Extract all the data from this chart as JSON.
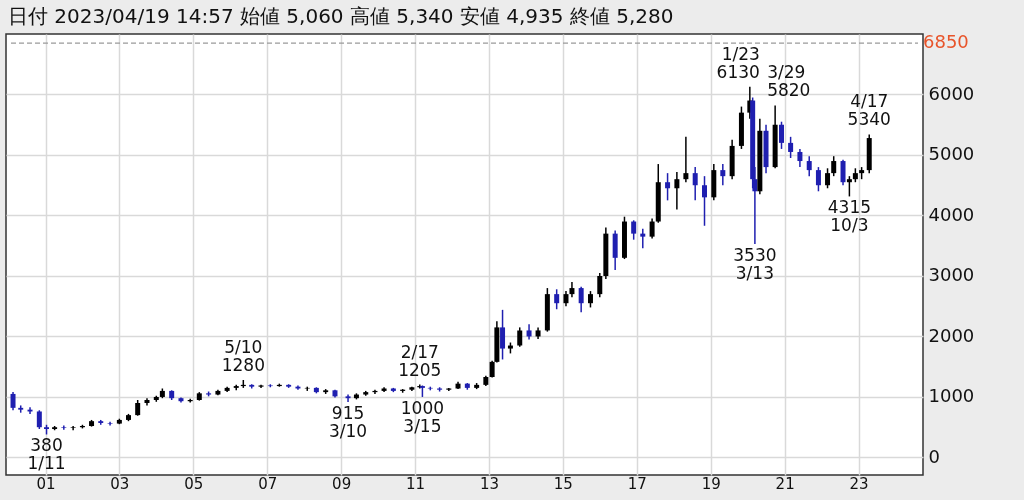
{
  "chart_data": {
    "type": "candlestick",
    "title": "日付 2023/04/19 14:57 始値 5,060 高値 5,340 安値 4,935 終値 5,280",
    "x": [
      "2000-02-15",
      "2000-05",
      "2000-08",
      "2000-11",
      "2001-01-11",
      "2001-04",
      "2001-07",
      "2001-10",
      "2002-01",
      "2002-04",
      "2002-07",
      "2002-10",
      "2003-01",
      "2003-04",
      "2003-07",
      "2003-10",
      "2004-01",
      "2004-03",
      "2004-06",
      "2004-09",
      "2004-12",
      "2005-03",
      "2005-06",
      "2005-09",
      "2005-12",
      "2006-03",
      "2006-05-10",
      "2006-08",
      "2006-11",
      "2007-02",
      "2007-05",
      "2007-08",
      "2007-11",
      "2008-02",
      "2008-05",
      "2008-08",
      "2008-11",
      "2009-03-10",
      "2009-06",
      "2009-09",
      "2009-12",
      "2010-03",
      "2010-06",
      "2010-09",
      "2010-12",
      "2011-02-17",
      "2011-03-15",
      "2011-06",
      "2011-09",
      "2011-12",
      "2012-03",
      "2012-06",
      "2012-09",
      "2012-12",
      "2013-02",
      "2013-03-20",
      "2013-05-15",
      "2013-08",
      "2013-11",
      "2014-02",
      "2014-05",
      "2014-08",
      "2014-11",
      "2015-02",
      "2015-04",
      "2015-07",
      "2015-10",
      "2016-01",
      "2016-03",
      "2016-06",
      "2016-09",
      "2016-12",
      "2017-03",
      "2017-06",
      "2017-08",
      "2017-11",
      "2018-02",
      "2018-05",
      "2018-08",
      "2018-11",
      "2019-02",
      "2019-05",
      "2019-08",
      "2019-11",
      "2020-01-23",
      "2020-02-20",
      "2020-03-13",
      "2020-05",
      "2020-07",
      "2020-09-29",
      "2020-12",
      "2021-03",
      "2021-06",
      "2021-09",
      "2021-12",
      "2022-03",
      "2022-05",
      "2022-08",
      "2022-10-03",
      "2022-12",
      "2023-02",
      "2023-04-17"
    ],
    "ohlc": [
      [
        1050,
        1080,
        780,
        820
      ],
      [
        820,
        860,
        740,
        790
      ],
      [
        790,
        830,
        720,
        760
      ],
      [
        760,
        780,
        470,
        500
      ],
      [
        500,
        540,
        380,
        470
      ],
      [
        470,
        520,
        450,
        500
      ],
      [
        500,
        530,
        460,
        490
      ],
      [
        490,
        520,
        450,
        500
      ],
      [
        500,
        540,
        480,
        520
      ],
      [
        520,
        620,
        510,
        600
      ],
      [
        600,
        620,
        540,
        570
      ],
      [
        570,
        590,
        530,
        560
      ],
      [
        560,
        640,
        550,
        620
      ],
      [
        620,
        720,
        600,
        700
      ],
      [
        700,
        950,
        690,
        900
      ],
      [
        900,
        980,
        860,
        950
      ],
      [
        950,
        1020,
        920,
        1000
      ],
      [
        1000,
        1140,
        980,
        1100
      ],
      [
        1100,
        1110,
        950,
        980
      ],
      [
        980,
        990,
        910,
        930
      ],
      [
        930,
        970,
        910,
        950
      ],
      [
        950,
        1080,
        940,
        1060
      ],
      [
        1060,
        1090,
        1010,
        1040
      ],
      [
        1040,
        1120,
        1030,
        1100
      ],
      [
        1100,
        1170,
        1080,
        1150
      ],
      [
        1150,
        1200,
        1110,
        1180
      ],
      [
        1180,
        1280,
        1150,
        1200
      ],
      [
        1200,
        1210,
        1140,
        1170
      ],
      [
        1170,
        1200,
        1150,
        1190
      ],
      [
        1190,
        1210,
        1160,
        1180
      ],
      [
        1180,
        1220,
        1170,
        1200
      ],
      [
        1200,
        1210,
        1150,
        1170
      ],
      [
        1170,
        1190,
        1120,
        1140
      ],
      [
        1140,
        1170,
        1100,
        1150
      ],
      [
        1150,
        1160,
        1060,
        1080
      ],
      [
        1080,
        1130,
        1050,
        1110
      ],
      [
        1110,
        1120,
        990,
        1010
      ],
      [
        1010,
        1040,
        915,
        980
      ],
      [
        980,
        1060,
        960,
        1040
      ],
      [
        1040,
        1100,
        1020,
        1080
      ],
      [
        1080,
        1120,
        1050,
        1100
      ],
      [
        1100,
        1160,
        1080,
        1140
      ],
      [
        1140,
        1150,
        1080,
        1100
      ],
      [
        1100,
        1130,
        1070,
        1120
      ],
      [
        1120,
        1170,
        1100,
        1160
      ],
      [
        1160,
        1205,
        1140,
        1180
      ],
      [
        1180,
        1190,
        1000,
        1150
      ],
      [
        1150,
        1170,
        1110,
        1140
      ],
      [
        1140,
        1160,
        1090,
        1120
      ],
      [
        1120,
        1150,
        1100,
        1140
      ],
      [
        1140,
        1250,
        1130,
        1220
      ],
      [
        1220,
        1230,
        1120,
        1150
      ],
      [
        1150,
        1230,
        1130,
        1200
      ],
      [
        1200,
        1350,
        1180,
        1330
      ],
      [
        1330,
        1600,
        1320,
        1580
      ],
      [
        1580,
        2250,
        1570,
        2150
      ],
      [
        2150,
        2440,
        1620,
        1800
      ],
      [
        1800,
        1900,
        1720,
        1850
      ],
      [
        1850,
        2150,
        1830,
        2100
      ],
      [
        2100,
        2200,
        1950,
        2000
      ],
      [
        2000,
        2150,
        1960,
        2100
      ],
      [
        2100,
        2800,
        2080,
        2700
      ],
      [
        2700,
        2780,
        2450,
        2550
      ],
      [
        2550,
        2750,
        2500,
        2700
      ],
      [
        2700,
        2900,
        2650,
        2800
      ],
      [
        2800,
        2820,
        2400,
        2550
      ],
      [
        2550,
        2750,
        2480,
        2700
      ],
      [
        2700,
        3050,
        2650,
        3000
      ],
      [
        3000,
        3800,
        2950,
        3700
      ],
      [
        3700,
        3750,
        3100,
        3300
      ],
      [
        3300,
        3980,
        3280,
        3900
      ],
      [
        3900,
        3920,
        3600,
        3700
      ],
      [
        3700,
        3780,
        3460,
        3650
      ],
      [
        3650,
        3950,
        3620,
        3900
      ],
      [
        3900,
        4850,
        3880,
        4550
      ],
      [
        4550,
        4700,
        4250,
        4450
      ],
      [
        4450,
        4720,
        4100,
        4600
      ],
      [
        4600,
        5300,
        4550,
        4700
      ],
      [
        4700,
        4800,
        4250,
        4500
      ],
      [
        4500,
        4650,
        3830,
        4300
      ],
      [
        4300,
        4850,
        4250,
        4750
      ],
      [
        4750,
        4850,
        4500,
        4650
      ],
      [
        4650,
        5250,
        4600,
        5150
      ],
      [
        5150,
        5800,
        5100,
        5700
      ],
      [
        5700,
        6130,
        5600,
        5900
      ],
      [
        5900,
        5950,
        4450,
        4600
      ],
      [
        4600,
        4800,
        3530,
        4400
      ],
      [
        4400,
        5600,
        4350,
        5400
      ],
      [
        5400,
        5500,
        4700,
        4800
      ],
      [
        4800,
        5820,
        4780,
        5500
      ],
      [
        5500,
        5550,
        5100,
        5200
      ],
      [
        5200,
        5300,
        4950,
        5050
      ],
      [
        5050,
        5100,
        4800,
        4900
      ],
      [
        4900,
        4980,
        4650,
        4750
      ],
      [
        4750,
        4800,
        4400,
        4500
      ],
      [
        4500,
        4780,
        4450,
        4700
      ],
      [
        4700,
        4980,
        4650,
        4900
      ],
      [
        4900,
        4920,
        4500,
        4550
      ],
      [
        4550,
        4650,
        4315,
        4600
      ],
      [
        4600,
        4780,
        4550,
        4700
      ],
      [
        4700,
        4800,
        4600,
        4750
      ],
      [
        4750,
        5340,
        4700,
        5280
      ]
    ],
    "colors": [
      "#1f1fb0",
      "#1f1fb0",
      "#1f1fb0",
      "#1f1fb0",
      "#1f1fb0",
      "#000000",
      "#1f1fb0",
      "#000000",
      "#000000",
      "#000000",
      "#1f1fb0",
      "#1f1fb0",
      "#000000",
      "#000000",
      "#000000",
      "#000000",
      "#000000",
      "#000000",
      "#1f1fb0",
      "#1f1fb0",
      "#000000",
      "#000000",
      "#1f1fb0",
      "#000000",
      "#000000",
      "#000000",
      "#000000",
      "#1f1fb0",
      "#000000",
      "#1f1fb0",
      "#000000",
      "#1f1fb0",
      "#1f1fb0",
      "#000000",
      "#1f1fb0",
      "#000000",
      "#1f1fb0",
      "#1f1fb0",
      "#000000",
      "#000000",
      "#000000",
      "#000000",
      "#1f1fb0",
      "#000000",
      "#000000",
      "#000000",
      "#1f1fb0",
      "#1f1fb0",
      "#1f1fb0",
      "#000000",
      "#000000",
      "#1f1fb0",
      "#000000",
      "#000000",
      "#000000",
      "#000000",
      "#1f1fb0",
      "#000000",
      "#000000",
      "#1f1fb0",
      "#000000",
      "#000000",
      "#1f1fb0",
      "#000000",
      "#000000",
      "#1f1fb0",
      "#000000",
      "#000000",
      "#000000",
      "#1f1fb0",
      "#000000",
      "#1f1fb0",
      "#1f1fb0",
      "#000000",
      "#000000",
      "#1f1fb0",
      "#000000",
      "#000000",
      "#1f1fb0",
      "#1f1fb0",
      "#000000",
      "#1f1fb0",
      "#000000",
      "#000000",
      "#000000",
      "#1f1fb0",
      "#1f1fb0",
      "#000000",
      "#1f1fb0",
      "#000000",
      "#1f1fb0",
      "#1f1fb0",
      "#1f1fb0",
      "#1f1fb0",
      "#1f1fb0",
      "#000000",
      "#000000",
      "#1f1fb0",
      "#000000",
      "#000000",
      "#000000",
      "#000000"
    ],
    "xlim": [
      "2000-01-26",
      "2024-08-11"
    ],
    "xticks": [
      {
        "value": "2001",
        "label": "01"
      },
      {
        "value": "2003",
        "label": "03"
      },
      {
        "value": "2005",
        "label": "05"
      },
      {
        "value": "2007",
        "label": "07"
      },
      {
        "value": "2009",
        "label": "09"
      },
      {
        "value": "2011",
        "label": "11"
      },
      {
        "value": "2013",
        "label": "13"
      },
      {
        "value": "2015",
        "label": "15"
      },
      {
        "value": "2017",
        "label": "17"
      },
      {
        "value": "2019",
        "label": "19"
      },
      {
        "value": "2021",
        "label": "21"
      },
      {
        "value": "2023",
        "label": "23"
      }
    ],
    "ylim": [
      -290,
      7000
    ],
    "yticks": [
      0,
      1000,
      2000,
      3000,
      4000,
      5000,
      6000
    ],
    "grid": true,
    "ref_lines": [
      {
        "axis": "y",
        "value": 6850,
        "label": "6850",
        "color": "#9a9a9a",
        "line_style": "dashed"
      }
    ],
    "annotations": [
      {
        "text": "380\n1/11",
        "x": "2001-01-11",
        "y": 380
      },
      {
        "text": "5/10\n1280",
        "x": "2006-05-10",
        "y": 1280
      },
      {
        "text": "915\n3/10",
        "x": "2009-03-10",
        "y": 915
      },
      {
        "text": "2/17\n1205",
        "x": "2011-02-17",
        "y": 1205
      },
      {
        "text": "1000\n3/15",
        "x": "2011-03-15",
        "y": 1000
      },
      {
        "text": "1/23\n6130",
        "x": "2020-01-23",
        "y": 6130
      },
      {
        "text": "3/29\n5820",
        "x": "2020-09-29",
        "y": 5820
      },
      {
        "text": "3530\n3/13",
        "x": "2020-03-13",
        "y": 3530
      },
      {
        "text": "4315\n10/3",
        "x": "2022-10-03",
        "y": 4315
      },
      {
        "text": "4/17\n5340",
        "x": "2023-04-17",
        "y": 5340
      }
    ]
  }
}
